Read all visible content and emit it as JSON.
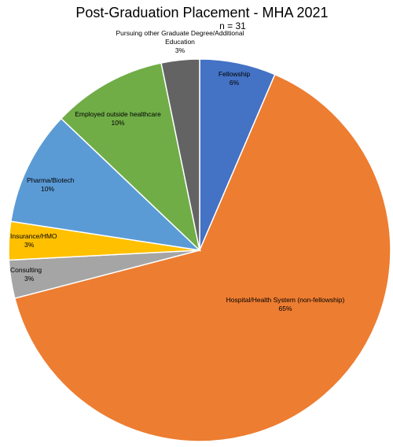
{
  "chart_data": {
    "type": "pie",
    "title": "Post-Graduation Placement - MHA 2021",
    "subtitle": "n = 31",
    "slices": [
      {
        "label": "Fellowship",
        "percent_label": "6%",
        "value": 6.45,
        "color": "#4472C4"
      },
      {
        "label": "Hospital/Health System (non-fellowship)",
        "percent_label": "65%",
        "value": 64.52,
        "color": "#ED7D31"
      },
      {
        "label": "Consulting",
        "percent_label": "3%",
        "value": 3.23,
        "color": "#A5A5A5"
      },
      {
        "label": "Insurance/HMO",
        "percent_label": "3%",
        "value": 3.23,
        "color": "#FFC000"
      },
      {
        "label": "Pharma/Biotech",
        "percent_label": "10%",
        "value": 9.68,
        "color": "#5B9BD5"
      },
      {
        "label": "Employed outside healthcare",
        "percent_label": "10%",
        "value": 9.68,
        "color": "#70AD47"
      },
      {
        "label": "Pursuing other Graduate Degree/Additional Education",
        "percent_label": "3%",
        "value": 3.23,
        "color": "#636363"
      }
    ]
  }
}
